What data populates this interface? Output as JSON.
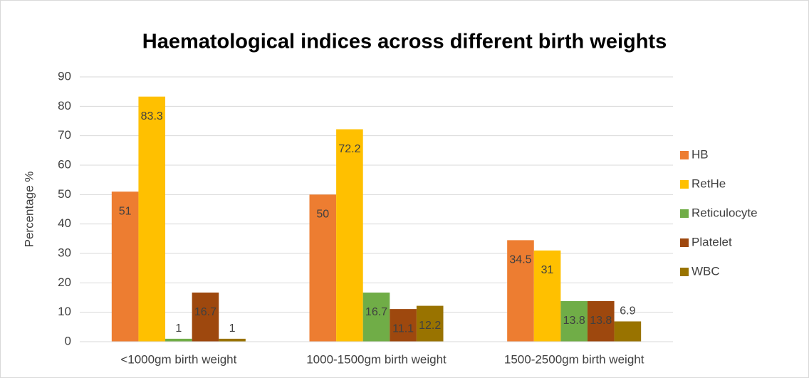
{
  "chart_data": {
    "type": "bar",
    "title": "Haematological indices across different birth weights",
    "y_label": "Percentage %",
    "categories": [
      "<1000gm birth weight",
      "1000-1500gm birth weight",
      "1500-2500gm birth weight"
    ],
    "series": [
      {
        "name": "HB",
        "color": "#ed7d31",
        "values": [
          51,
          50,
          34.5
        ]
      },
      {
        "name": "RetHe",
        "color": "#ffc000",
        "values": [
          83.3,
          72.2,
          31
        ]
      },
      {
        "name": "Reticulocyte",
        "color": "#70ad47",
        "values": [
          1,
          16.7,
          13.8
        ]
      },
      {
        "name": "Platelet",
        "color": "#9e480e",
        "values": [
          16.7,
          11.1,
          13.8
        ]
      },
      {
        "name": "WBC",
        "color": "#997300",
        "values": [
          1,
          12.2,
          6.9
        ]
      }
    ],
    "ylim": [
      0,
      90
    ],
    "yticks": [
      0,
      10,
      20,
      30,
      40,
      50,
      60,
      70,
      80,
      90
    ],
    "grid": true,
    "legend": "right"
  }
}
